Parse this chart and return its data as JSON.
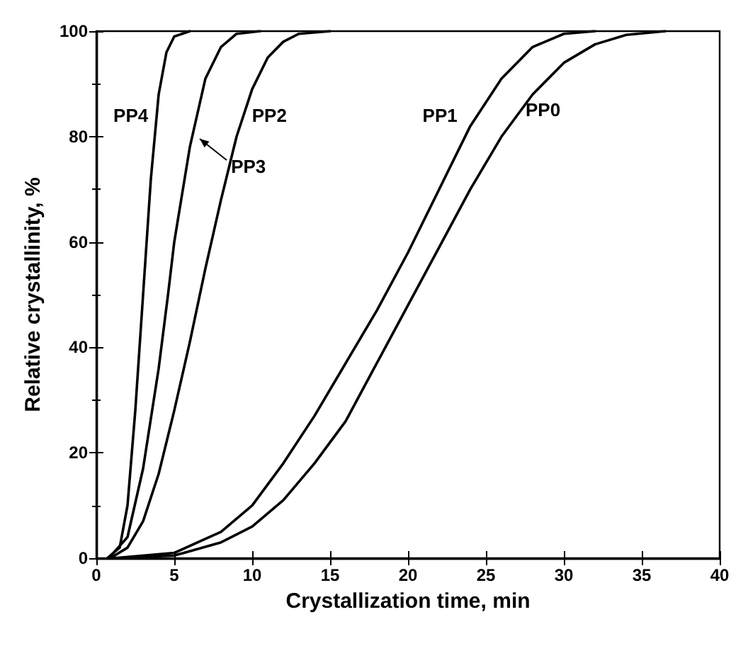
{
  "chart_data": {
    "type": "line",
    "xlabel": "Crystallization time, min",
    "ylabel": "Relative crystallinity, %",
    "xlim": [
      0,
      40
    ],
    "xticks": [
      0,
      5,
      10,
      15,
      20,
      25,
      30,
      35,
      40
    ],
    "ylim": [
      0,
      100
    ],
    "yticks": [
      0,
      20,
      40,
      60,
      80,
      100
    ],
    "grid": false,
    "marker": "none",
    "line_style": "solid",
    "series": [
      {
        "name": "PP0",
        "color": "#000000",
        "x": [
          1.3,
          5,
          8,
          10,
          12,
          14,
          16,
          18,
          20,
          22,
          24,
          26,
          28,
          30,
          32,
          34,
          36.5
        ],
        "values": [
          0,
          0.5,
          3,
          6,
          11,
          18,
          26,
          37,
          48,
          59,
          70,
          80,
          88,
          94,
          97.5,
          99.3,
          100
        ]
      },
      {
        "name": "PP1",
        "color": "#000000",
        "x": [
          1.1,
          5,
          8,
          10,
          12,
          14,
          16,
          18,
          20,
          22,
          24,
          26,
          28,
          30,
          32
        ],
        "values": [
          0,
          1,
          5,
          10,
          18,
          27,
          37,
          47,
          58,
          70,
          82,
          91,
          97,
          99.5,
          100
        ]
      },
      {
        "name": "PP2",
        "color": "#000000",
        "x": [
          0.9,
          2,
          3,
          4,
          5,
          6,
          7,
          8,
          9,
          10,
          11,
          12,
          13,
          15
        ],
        "values": [
          0,
          2,
          7,
          16,
          28,
          41,
          55,
          68,
          80,
          89,
          95,
          98,
          99.5,
          100
        ]
      },
      {
        "name": "PP3",
        "color": "#000000",
        "x": [
          0.8,
          2,
          3,
          4,
          4.6,
          5,
          6,
          7,
          8,
          9,
          10.5
        ],
        "values": [
          0,
          4,
          17,
          36,
          50,
          60,
          78,
          91,
          97,
          99.5,
          100
        ]
      },
      {
        "name": "PP4",
        "color": "#000000",
        "x": [
          0.7,
          1.5,
          2,
          2.5,
          3,
          3.5,
          4,
          4.5,
          5,
          6
        ],
        "values": [
          0,
          2,
          10,
          28,
          50,
          72,
          88,
          96,
          99,
          100
        ]
      }
    ]
  }
}
